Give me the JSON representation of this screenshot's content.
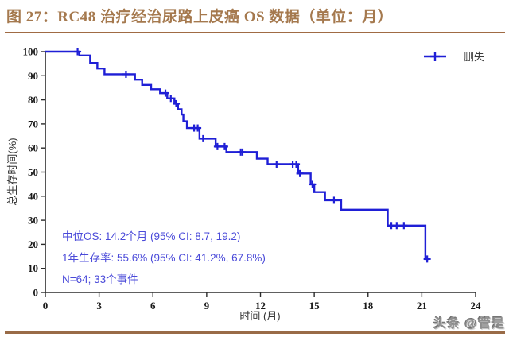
{
  "page": {
    "title": "图 27：RC48 治疗经治尿路上皮癌 OS 数据（单位：月）",
    "watermark": "头条 @管是"
  },
  "colors": {
    "title_text": "#A5794E",
    "rule_top": "#A06B44",
    "rule_bottom": "#996B47",
    "curve": "#1F1FD6",
    "annotation_text": "#4A4AD9",
    "axis": "#2B2B2B",
    "watermark_text": "#8F8F8F"
  },
  "chart_data": {
    "type": "line",
    "subtype": "kaplan-meier-step",
    "title": "",
    "xlabel": "时间 (月)",
    "ylabel": "总生存时间(%)",
    "xlim": [
      0,
      24
    ],
    "ylim": [
      0,
      100
    ],
    "x_ticks": [
      0,
      3,
      6,
      9,
      12,
      15,
      18,
      21,
      24
    ],
    "y_ticks": [
      0,
      10,
      20,
      30,
      40,
      50,
      60,
      70,
      80,
      90,
      100
    ],
    "grid": false,
    "legend_position": "top-right",
    "legend": [
      {
        "label": "删失",
        "marker": "plus"
      }
    ],
    "series": [
      {
        "name": "OS",
        "end_time": 21.4,
        "steps": [
          [
            0,
            100
          ],
          [
            1.9,
            98.4
          ],
          [
            2.5,
            95.3
          ],
          [
            2.9,
            93.0
          ],
          [
            3.3,
            90.6
          ],
          [
            5.0,
            88.4
          ],
          [
            5.4,
            86.2
          ],
          [
            5.9,
            84.4
          ],
          [
            6.4,
            82.8
          ],
          [
            6.8,
            80.6
          ],
          [
            7.2,
            78.4
          ],
          [
            7.4,
            76.1
          ],
          [
            7.6,
            73.9
          ],
          [
            7.7,
            71.1
          ],
          [
            7.9,
            68.3
          ],
          [
            8.6,
            63.9
          ],
          [
            9.5,
            60.6
          ],
          [
            10.1,
            58.3
          ],
          [
            11.8,
            55.6
          ],
          [
            12.4,
            53.3
          ],
          [
            14.1,
            49.4
          ],
          [
            14.8,
            44.9
          ],
          [
            15.0,
            41.7
          ],
          [
            15.6,
            38.3
          ],
          [
            16.5,
            34.4
          ],
          [
            19.1,
            27.8
          ],
          [
            21.2,
            13.9
          ]
        ]
      }
    ],
    "censors": [
      [
        1.8,
        100
      ],
      [
        4.5,
        90.6
      ],
      [
        6.7,
        82.8
      ],
      [
        7.0,
        80.6
      ],
      [
        7.3,
        78.4
      ],
      [
        8.3,
        68.3
      ],
      [
        8.5,
        68.3
      ],
      [
        8.8,
        63.9
      ],
      [
        9.6,
        60.6
      ],
      [
        10.0,
        60.6
      ],
      [
        10.9,
        58.3
      ],
      [
        11.0,
        58.3
      ],
      [
        12.9,
        53.3
      ],
      [
        13.8,
        53.3
      ],
      [
        14.0,
        53.3
      ],
      [
        14.2,
        49.4
      ],
      [
        14.9,
        44.9
      ],
      [
        16.1,
        38.3
      ],
      [
        19.3,
        27.8
      ],
      [
        19.6,
        27.8
      ],
      [
        20.0,
        27.8
      ],
      [
        21.3,
        13.9
      ]
    ],
    "annotations": [
      "中位OS: 14.2个月 (95% CI: 8.7, 19.2)",
      "1年生存率: 55.6% (95% CI: 41.2%, 67.8%)",
      "N=64; 33个事件"
    ]
  }
}
